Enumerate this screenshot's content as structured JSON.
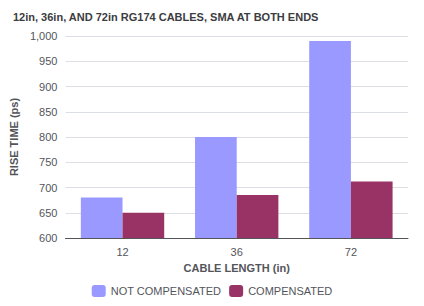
{
  "chart_data": {
    "type": "bar",
    "title": "12in, 36in, AND 72in RG174 CABLES, SMA AT BOTH ENDS",
    "xlabel": "CABLE LENGTH (in)",
    "ylabel": "RISE TIME (ps)",
    "categories": [
      "12",
      "36",
      "72"
    ],
    "series": [
      {
        "name": "NOT COMPENSATED",
        "color": "#9999ff",
        "values": [
          680,
          800,
          990
        ]
      },
      {
        "name": "COMPENSATED",
        "color": "#993366",
        "values": [
          650,
          685,
          712
        ]
      }
    ],
    "ylim": [
      600,
      1000
    ],
    "yticks": [
      600,
      650,
      700,
      750,
      800,
      850,
      900,
      950,
      1000
    ],
    "grid": true,
    "legend": "bottom"
  }
}
